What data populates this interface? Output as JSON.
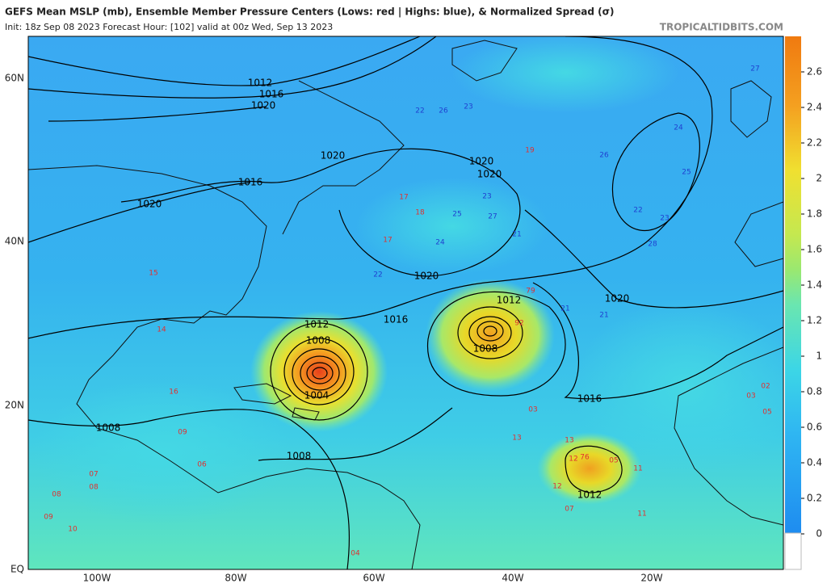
{
  "header": {
    "title": "GEFS Mean MSLP (mb), Ensemble Member Pressure Centers (Lows: red | Highs: blue), & Normalized Spread (σ)",
    "subtitle": "Init: 18z Sep 08 2023   Forecast Hour: [102]   valid at 00z Wed, Sep 13 2023",
    "credit": "TROPICALTIDBITS.COM"
  },
  "colorbar": {
    "ticks": [
      0,
      0.2,
      0.4,
      0.6,
      0.8,
      1,
      1.2,
      1.4,
      1.6,
      1.8,
      2,
      2.2,
      2.4,
      2.6
    ],
    "lim": [
      -0.2,
      2.8
    ]
  },
  "lat_labels": [
    "60N",
    "40N",
    "20N",
    "EQ"
  ],
  "lon_labels": [
    "100W",
    "80W",
    "60W",
    "40W",
    "20W"
  ],
  "isobar_labels": [
    "1012",
    "1016",
    "1020",
    "1020",
    "1016",
    "1020",
    "1020",
    "1020",
    "1020",
    "1016",
    "1012",
    "1008",
    "1004",
    "1012",
    "1008",
    "1016",
    "1020",
    "1008",
    "1008",
    "1012"
  ],
  "lows": [
    "07",
    "08",
    "09",
    "12",
    "11",
    "13",
    "15",
    "17",
    "18",
    "79",
    "92",
    "03",
    "76",
    "05",
    "07",
    "11",
    "13",
    "12",
    "09",
    "08",
    "06",
    "04",
    "02",
    "03",
    "05",
    "10",
    "14",
    "16",
    "17",
    "19"
  ],
  "highs": [
    "22",
    "26",
    "23",
    "21",
    "24",
    "25",
    "27",
    "28",
    "22",
    "23",
    "21",
    "24",
    "25",
    "26",
    "27",
    "23",
    "22",
    "21"
  ]
}
